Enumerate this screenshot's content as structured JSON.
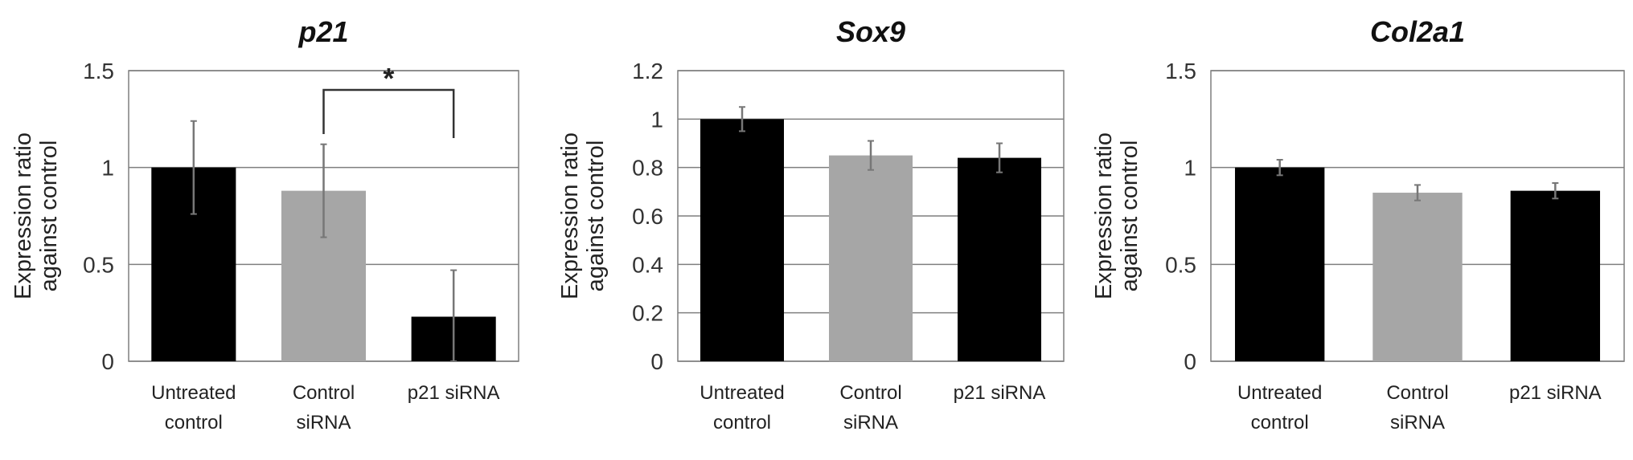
{
  "chart_data": [
    {
      "type": "bar",
      "title": "p21",
      "ylabel": [
        "Expression ratio",
        "against control"
      ],
      "xlabel": "",
      "categories": [
        [
          "Untreated",
          "control"
        ],
        [
          "Control",
          "siRNA"
        ],
        [
          "p21 siRNA"
        ]
      ],
      "values": [
        1.0,
        0.88,
        0.23
      ],
      "errors": [
        0.24,
        0.24,
        0.24
      ],
      "bar_colors": [
        "#000000",
        "#a6a6a6",
        "#000000"
      ],
      "ylim": [
        0,
        1.5
      ],
      "yticks": [
        "0",
        "0.5",
        "1",
        "1.5"
      ],
      "gridlines": [
        0,
        0.5,
        1.0,
        1.5
      ],
      "significance": {
        "label": "*",
        "between": [
          1,
          2
        ]
      }
    },
    {
      "type": "bar",
      "title": "Sox9",
      "ylabel": [
        "Expression ratio",
        "against control"
      ],
      "xlabel": "",
      "categories": [
        [
          "Untreated",
          "control"
        ],
        [
          "Control",
          "siRNA"
        ],
        [
          "p21 siRNA"
        ]
      ],
      "values": [
        1.0,
        0.85,
        0.84
      ],
      "errors": [
        0.05,
        0.06,
        0.06
      ],
      "bar_colors": [
        "#000000",
        "#a6a6a6",
        "#000000"
      ],
      "ylim": [
        0,
        1.2
      ],
      "yticks": [
        "0",
        "0.2",
        "0.4",
        "0.6",
        "0.8",
        "1",
        "1.2"
      ],
      "gridlines": [
        0,
        0.2,
        0.4,
        0.6,
        0.8,
        1.0,
        1.2
      ]
    },
    {
      "type": "bar",
      "title": "Col2a1",
      "ylabel": [
        "Expression ratio",
        "against control"
      ],
      "xlabel": "",
      "categories": [
        [
          "Untreated",
          "control"
        ],
        [
          "Control",
          "siRNA"
        ],
        [
          "p21 siRNA"
        ]
      ],
      "values": [
        1.0,
        0.87,
        0.88
      ],
      "errors": [
        0.04,
        0.04,
        0.04
      ],
      "bar_colors": [
        "#000000",
        "#a6a6a6",
        "#000000"
      ],
      "ylim": [
        0,
        1.5
      ],
      "yticks": [
        "0",
        "0.5",
        "1",
        "1.5"
      ],
      "gridlines": [
        0,
        0.5,
        1.0,
        1.5
      ]
    }
  ]
}
